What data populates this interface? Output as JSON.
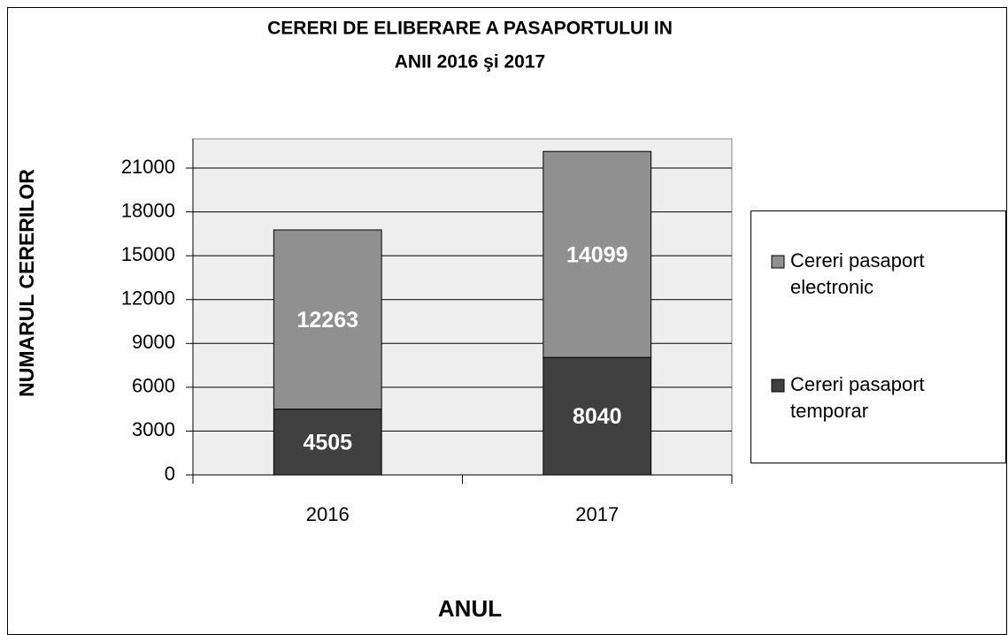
{
  "chart_data": {
    "type": "bar",
    "stacked": true,
    "title": [
      "CERERI DE ELIBERARE A PASAPORTULUI IN",
      "ANII 2016 şi 2017"
    ],
    "x_label": "ANUL",
    "y_label": "NUMARUL CERERILOR",
    "categories": [
      "2016",
      "2017"
    ],
    "series": [
      {
        "name": "Cereri pasaport temporar",
        "color": "#404040",
        "values": [
          4505,
          8040
        ]
      },
      {
        "name": "Cereri pasaport electronic",
        "color": "#909090",
        "values": [
          12263,
          14099
        ]
      }
    ],
    "ylim": [
      0,
      23000
    ],
    "yticks": [
      0,
      3000,
      6000,
      9000,
      12000,
      15000,
      18000,
      21000
    ],
    "grid": true,
    "legend": "right"
  }
}
